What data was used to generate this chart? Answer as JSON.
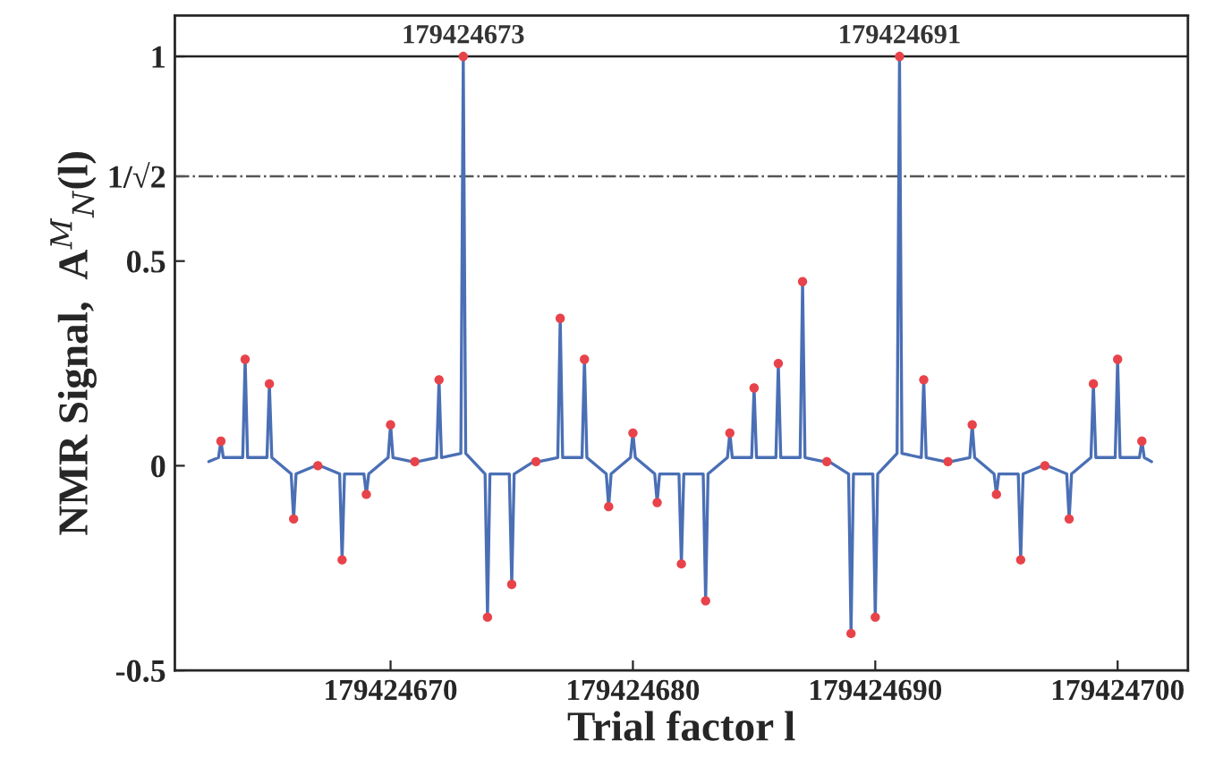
{
  "chart_data": {
    "type": "line",
    "xlabel": "Trial factor l",
    "ylabel": "NMR Signal,  A$^{M}$$_{N}$(l)",
    "xlim": [
      179424661.1,
      179424702.9
    ],
    "xticks": [
      179424670,
      179424680,
      179424690,
      179424700
    ],
    "ylim": [
      -0.5,
      1.1
    ],
    "yticks": [
      -0.5,
      0,
      0.5,
      {
        "value": 0.7071,
        "label": "1/√2"
      },
      1
    ],
    "grid": false,
    "legend": false,
    "ref_lines": [
      {
        "axis": "y",
        "value": 1,
        "label": null,
        "color": "#222222",
        "line_style": "solid"
      },
      {
        "axis": "y",
        "value": 0.7071,
        "label": null,
        "color": "#555555",
        "line_style": "dashdot"
      }
    ],
    "annotations": [
      {
        "text": "179424673",
        "x": 179424673,
        "y": 1
      },
      {
        "text": "179424691",
        "x": 179424691,
        "y": 1
      }
    ],
    "series": [
      {
        "color": "#4a6fb5",
        "marker": "none",
        "line_style": "solid",
        "x": [
          179424662.5,
          179424662.9,
          179424663,
          179424663.1,
          179424663.9,
          179424664,
          179424664.1,
          179424664.9,
          179424665,
          179424665.1,
          179424665.9,
          179424666,
          179424666.1,
          179424666.9,
          179424667,
          179424667.1,
          179424667.9,
          179424668,
          179424668.1,
          179424668.9,
          179424669,
          179424669.1,
          179424669.9,
          179424670,
          179424670.1,
          179424670.9,
          179424671,
          179424671.1,
          179424671.9,
          179424672,
          179424672.1,
          179424672.9,
          179424673,
          179424673.1,
          179424673.9,
          179424674,
          179424674.1,
          179424674.9,
          179424675,
          179424675.1,
          179424675.9,
          179424676,
          179424676.1,
          179424676.9,
          179424677,
          179424677.1,
          179424677.9,
          179424678,
          179424678.1,
          179424678.9,
          179424679,
          179424679.1,
          179424679.9,
          179424680,
          179424680.1,
          179424680.9,
          179424681,
          179424681.1,
          179424681.9,
          179424682,
          179424682.1,
          179424682.9,
          179424683,
          179424683.1,
          179424683.9,
          179424684,
          179424684.1,
          179424684.9,
          179424685,
          179424685.1,
          179424685.9,
          179424686,
          179424686.1,
          179424686.9,
          179424687,
          179424687.1,
          179424687.9,
          179424688,
          179424688.1,
          179424688.9,
          179424689,
          179424689.1,
          179424689.9,
          179424690,
          179424690.1,
          179424690.9,
          179424691,
          179424691.1,
          179424691.9,
          179424692,
          179424692.1,
          179424692.9,
          179424693,
          179424693.1,
          179424693.9,
          179424694,
          179424694.1,
          179424694.9,
          179424695,
          179424695.1,
          179424695.9,
          179424696,
          179424696.1,
          179424696.9,
          179424697,
          179424697.1,
          179424697.9,
          179424698,
          179424698.1,
          179424698.9,
          179424699,
          179424699.1,
          179424699.9,
          179424700,
          179424700.1,
          179424700.9,
          179424701,
          179424701.1,
          179424701.4
        ],
        "values": [
          0.01,
          0.02,
          0.06,
          0.02,
          0.02,
          0.26,
          0.02,
          0.02,
          0.2,
          0.02,
          -0.02,
          -0.13,
          -0.02,
          0,
          0,
          0,
          -0.02,
          -0.23,
          -0.02,
          -0.02,
          -0.07,
          -0.02,
          0.02,
          0.1,
          0.02,
          0.01,
          0.01,
          0.01,
          0.02,
          0.21,
          0.02,
          0.03,
          1,
          0.03,
          -0.02,
          -0.37,
          -0.02,
          -0.02,
          -0.29,
          -0.02,
          0.01,
          0.01,
          0.01,
          0.02,
          0.36,
          0.02,
          0.02,
          0.26,
          0.02,
          -0.02,
          -0.1,
          -0.02,
          0.02,
          0.08,
          0.02,
          -0.02,
          -0.09,
          -0.02,
          -0.02,
          -0.24,
          -0.02,
          -0.02,
          -0.33,
          -0.02,
          0.02,
          0.08,
          0.02,
          0.02,
          0.19,
          0.02,
          0.02,
          0.25,
          0.02,
          0.02,
          0.45,
          0.02,
          0.01,
          0.01,
          0.01,
          -0.02,
          -0.41,
          -0.02,
          -0.02,
          -0.37,
          -0.02,
          0.03,
          1,
          0.03,
          0.02,
          0.21,
          0.02,
          0.01,
          0.01,
          0.01,
          0.02,
          0.1,
          0.02,
          -0.02,
          -0.07,
          -0.02,
          -0.02,
          -0.23,
          -0.02,
          0,
          0,
          0,
          -0.02,
          -0.13,
          -0.02,
          0.02,
          0.2,
          0.02,
          0.02,
          0.26,
          0.02,
          0.02,
          0.06,
          0.02,
          0.01
        ]
      },
      {
        "type": "scatter",
        "color": "#e8434a",
        "marker": "circle",
        "x": [
          179424663,
          179424664,
          179424665,
          179424666,
          179424667,
          179424668,
          179424669,
          179424670,
          179424671,
          179424672,
          179424673,
          179424674,
          179424675,
          179424676,
          179424677,
          179424678,
          179424679,
          179424680,
          179424681,
          179424682,
          179424683,
          179424684,
          179424685,
          179424686,
          179424687,
          179424688,
          179424689,
          179424690,
          179424691,
          179424692,
          179424693,
          179424694,
          179424695,
          179424696,
          179424697,
          179424698,
          179424699,
          179424700,
          179424701
        ],
        "values": [
          0.06,
          0.26,
          0.2,
          -0.13,
          0,
          -0.23,
          -0.07,
          0.1,
          0.01,
          0.21,
          1,
          -0.37,
          -0.29,
          0.01,
          0.36,
          0.26,
          -0.1,
          0.08,
          -0.09,
          -0.24,
          -0.33,
          0.08,
          0.19,
          0.25,
          0.45,
          0.01,
          -0.41,
          -0.37,
          1,
          0.21,
          0.01,
          0.1,
          -0.07,
          -0.23,
          0,
          -0.13,
          0.2,
          0.26,
          0.06
        ]
      }
    ]
  }
}
